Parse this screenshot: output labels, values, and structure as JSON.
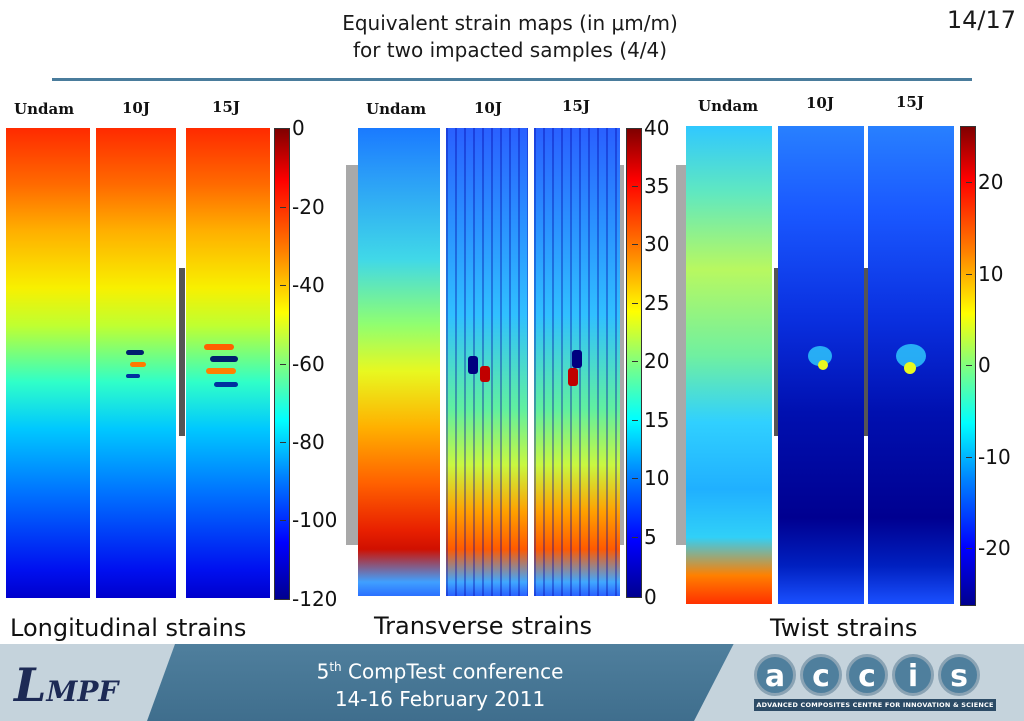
{
  "header": {
    "title_line1": "Equivalent strain maps (in μm/m)",
    "title_line2": "for two impacted samples (4/4)",
    "page_number": "14/17"
  },
  "panels": [
    {
      "caption": "Longitudinal strains",
      "samples": [
        "Undam",
        "10J",
        "15J"
      ],
      "colorbar_ticks": [
        "0",
        "-20",
        "-40",
        "-60",
        "-80",
        "-100",
        "-120"
      ],
      "colorbar_range": [
        -120,
        0
      ]
    },
    {
      "caption": "Transverse strains",
      "samples": [
        "Undam",
        "10J",
        "15J"
      ],
      "colorbar_ticks": [
        "40",
        "35",
        "30",
        "25",
        "20",
        "15",
        "10",
        "5",
        "0"
      ],
      "colorbar_range": [
        0,
        40
      ]
    },
    {
      "caption": "Twist strains",
      "samples": [
        "Undam",
        "10J",
        "15J"
      ],
      "colorbar_ticks": [
        "20",
        "10",
        "0",
        "-10",
        "-20"
      ],
      "colorbar_range": [
        -26,
        26
      ]
    }
  ],
  "footer": {
    "logo_left_L": "L",
    "logo_left_rest": "MPF",
    "conference_prefix": "5",
    "conference_sup": "th",
    "conference_suffix": " CompTest conference",
    "conference_dates": "14-16 February 2011",
    "logo_right_letters": [
      "a",
      "c",
      "c",
      "i",
      "s"
    ],
    "logo_right_tagline": "ADVANCED COMPOSITES CENTRE FOR INNOVATION & SCIENCE"
  },
  "colors": {
    "rule": "#4a7c9c",
    "footer_band": "#4f7f9d",
    "footer_boxes": "#c5d3dc",
    "jet_low": "#00008f",
    "jet_high": "#800000"
  }
}
